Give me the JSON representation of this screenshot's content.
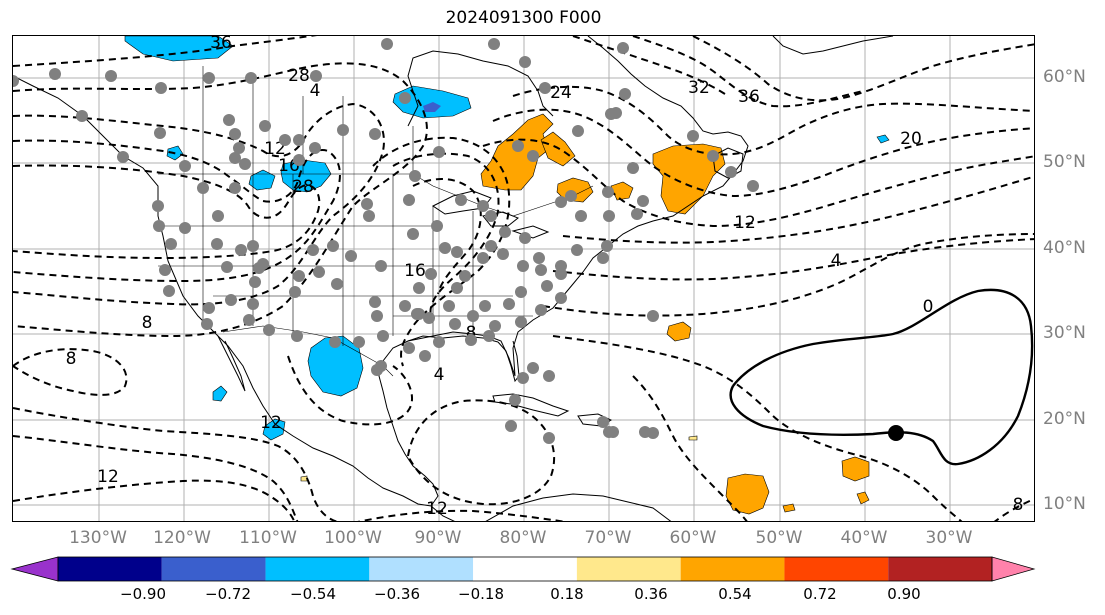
{
  "title": "2024091300 F000",
  "lat_labels": [
    "60°N",
    "50°N",
    "40°N",
    "30°N",
    "20°N",
    "10°N"
  ],
  "lon_labels": [
    "130°W",
    "120°W",
    "110°W",
    "100°W",
    "90°W",
    "80°W",
    "70°W",
    "60°W",
    "50°W",
    "40°W",
    "30°W"
  ],
  "contour_labels": [
    "36",
    "28",
    "4",
    "12",
    "16",
    "28",
    "12",
    "8",
    "16",
    "8",
    "4",
    "12",
    "12",
    "8",
    "32",
    "36",
    "20",
    "12",
    "4",
    "0",
    "8",
    "24"
  ],
  "colorbar": {
    "ticks": [
      "−0.90",
      "−0.72",
      "−0.54",
      "−0.36",
      "−0.18",
      "0.18",
      "0.36",
      "0.54",
      "0.72",
      "0.90"
    ],
    "colors": [
      "#9932cc",
      "#00008b",
      "#3a5fcd",
      "#00bfff",
      "#b0e0ff",
      "#ffffff",
      "#ffe88c",
      "#ffa500",
      "#ff4500",
      "#b22222",
      "#ff82ab"
    ]
  },
  "colors": {
    "positive": "#ffa500",
    "negative": "#00bfff",
    "negative_dark": "#3a5fcd",
    "station": "#808080",
    "grid": "#b0b0b0",
    "storm_marker": "#000000"
  }
}
